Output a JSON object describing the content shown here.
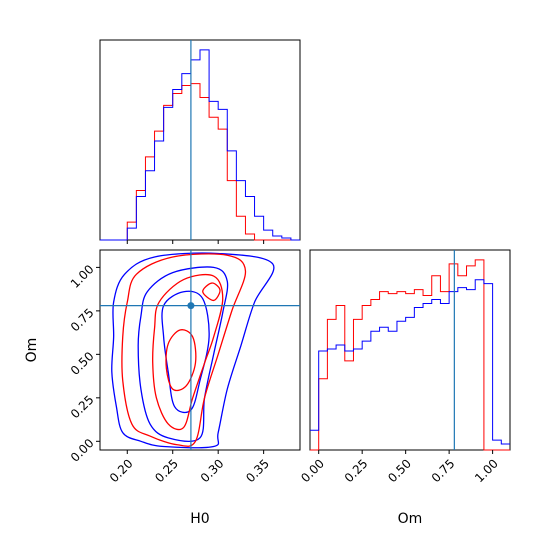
{
  "chart_data": {
    "type": "corner",
    "colors": {
      "red": "#ff0000",
      "blue": "#0000ff",
      "truth": "#1f77b4"
    },
    "truth": {
      "H0": 0.27,
      "Om": 0.78
    },
    "axes": {
      "H0": {
        "label": "H0",
        "ticks": [
          "0.20",
          "0.25",
          "0.30",
          "0.35"
        ],
        "tick_values": [
          0.2,
          0.25,
          0.3,
          0.35
        ],
        "range": [
          0.17,
          0.39
        ]
      },
      "Om": {
        "label": "Om",
        "ticks": [
          "0.00",
          "0.25",
          "0.50",
          "0.75",
          "1.00"
        ],
        "tick_values": [
          0.0,
          0.25,
          0.5,
          0.75,
          1.0
        ],
        "range": [
          -0.05,
          1.1
        ]
      }
    },
    "hist_H0": {
      "edges": [
        0.17,
        0.18,
        0.19,
        0.2,
        0.21,
        0.22,
        0.23,
        0.24,
        0.25,
        0.26,
        0.27,
        0.28,
        0.29,
        0.3,
        0.31,
        0.32,
        0.33,
        0.34,
        0.35,
        0.36,
        0.37,
        0.38,
        0.39
      ],
      "series": [
        {
          "color": "red",
          "values": [
            0,
            0,
            0,
            0.09,
            0.25,
            0.42,
            0.55,
            0.68,
            0.74,
            0.78,
            0.79,
            0.72,
            0.62,
            0.56,
            0.3,
            0.12,
            0.03,
            0,
            0,
            0,
            0,
            0
          ]
        },
        {
          "color": "blue",
          "values": [
            0,
            0,
            0,
            0.06,
            0.22,
            0.35,
            0.5,
            0.67,
            0.76,
            0.84,
            0.91,
            0.96,
            0.7,
            0.66,
            0.45,
            0.3,
            0.22,
            0.12,
            0.05,
            0.02,
            0.01,
            0
          ]
        }
      ]
    },
    "hist_Om": {
      "edges": [
        -0.05,
        0.0,
        0.05,
        0.1,
        0.15,
        0.2,
        0.25,
        0.3,
        0.35,
        0.4,
        0.45,
        0.5,
        0.55,
        0.6,
        0.65,
        0.7,
        0.75,
        0.8,
        0.85,
        0.9,
        0.95,
        1.0,
        1.05,
        1.1
      ],
      "series": [
        {
          "color": "red",
          "values": [
            0,
            0.36,
            0.66,
            0.73,
            0.45,
            0.66,
            0.73,
            0.76,
            0.8,
            0.79,
            0.8,
            0.79,
            0.81,
            0.78,
            0.88,
            0.8,
            0.94,
            0.88,
            0.93,
            0.96,
            0,
            0,
            0
          ]
        },
        {
          "color": "blue",
          "values": [
            0.1,
            0.5,
            0.51,
            0.53,
            0.5,
            0.51,
            0.55,
            0.6,
            0.62,
            0.6,
            0.65,
            0.67,
            0.72,
            0.74,
            0.76,
            0.74,
            0.8,
            0.82,
            0.81,
            0.86,
            0.84,
            0.05,
            0.03
          ]
        }
      ]
    },
    "contours": [
      {
        "color": "blue",
        "points": [
          [
            0.197,
            0.96
          ],
          [
            0.23,
            1.06
          ],
          [
            0.3,
            1.08
          ],
          [
            0.36,
            1.02
          ],
          [
            0.34,
            0.8
          ],
          [
            0.325,
            0.55
          ],
          [
            0.31,
            0.3
          ],
          [
            0.3,
            0.05
          ],
          [
            0.295,
            -0.03
          ],
          [
            0.24,
            -0.03
          ],
          [
            0.215,
            0.0
          ],
          [
            0.195,
            0.05
          ],
          [
            0.188,
            0.2
          ],
          [
            0.183,
            0.4
          ],
          [
            0.185,
            0.6
          ],
          [
            0.185,
            0.8
          ]
        ]
      },
      {
        "color": "blue",
        "points": [
          [
            0.222,
            0.86
          ],
          [
            0.25,
            0.97
          ],
          [
            0.295,
            1.0
          ],
          [
            0.31,
            0.92
          ],
          [
            0.305,
            0.74
          ],
          [
            0.295,
            0.5
          ],
          [
            0.285,
            0.25
          ],
          [
            0.28,
            0.02
          ],
          [
            0.245,
            0.02
          ],
          [
            0.225,
            0.1
          ],
          [
            0.215,
            0.3
          ],
          [
            0.212,
            0.55
          ],
          [
            0.215,
            0.72
          ]
        ]
      },
      {
        "color": "blue",
        "points": [
          [
            0.24,
            0.78
          ],
          [
            0.262,
            0.86
          ],
          [
            0.283,
            0.82
          ],
          [
            0.29,
            0.6
          ],
          [
            0.28,
            0.35
          ],
          [
            0.27,
            0.18
          ],
          [
            0.252,
            0.2
          ],
          [
            0.245,
            0.4
          ],
          [
            0.24,
            0.6
          ]
        ]
      },
      {
        "color": "red",
        "points": [
          [
            0.21,
            0.96
          ],
          [
            0.25,
            1.06
          ],
          [
            0.31,
            1.07
          ],
          [
            0.33,
            0.98
          ],
          [
            0.315,
            0.75
          ],
          [
            0.3,
            0.5
          ],
          [
            0.285,
            0.25
          ],
          [
            0.275,
            0.0
          ],
          [
            0.255,
            -0.02
          ],
          [
            0.225,
            0.03
          ],
          [
            0.205,
            0.1
          ],
          [
            0.195,
            0.35
          ],
          [
            0.195,
            0.6
          ],
          [
            0.2,
            0.8
          ]
        ]
      },
      {
        "color": "red",
        "points": [
          [
            0.235,
            0.8
          ],
          [
            0.262,
            0.93
          ],
          [
            0.295,
            0.95
          ],
          [
            0.305,
            0.82
          ],
          [
            0.295,
            0.6
          ],
          [
            0.285,
            0.45
          ],
          [
            0.272,
            0.25
          ],
          [
            0.262,
            0.08
          ],
          [
            0.245,
            0.1
          ],
          [
            0.232,
            0.25
          ],
          [
            0.228,
            0.45
          ],
          [
            0.23,
            0.65
          ]
        ]
      },
      {
        "color": "red",
        "points": [
          [
            0.245,
            0.56
          ],
          [
            0.258,
            0.64
          ],
          [
            0.272,
            0.6
          ],
          [
            0.275,
            0.45
          ],
          [
            0.265,
            0.32
          ],
          [
            0.25,
            0.3
          ],
          [
            0.243,
            0.42
          ]
        ]
      },
      {
        "color": "red",
        "points": [
          [
            0.283,
            0.86
          ],
          [
            0.293,
            0.91
          ],
          [
            0.302,
            0.87
          ],
          [
            0.295,
            0.81
          ]
        ]
      }
    ]
  },
  "labels": {
    "x_h0": "H0",
    "x_om": "Om",
    "y_om": "Om"
  }
}
